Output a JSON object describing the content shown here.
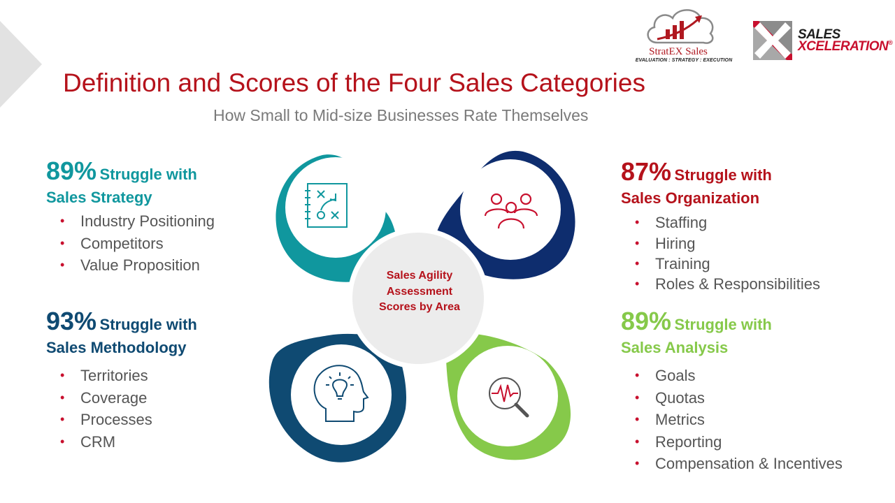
{
  "logos": {
    "stratex": {
      "name": "StratEX Sales",
      "tagline": "EVALUATION : STRATEGY : EXECUTION"
    },
    "sales_xceleration": {
      "line1": "SALES",
      "line2": "XCELERATION",
      "reg_mark": "®"
    }
  },
  "title": "Definition and Scores of the Four Sales Categories",
  "subtitle": "How Small to Mid-size Businesses Rate Themselves",
  "center_label": "Sales Agility Assessment Scores by Area",
  "colors": {
    "title": "#b5121b",
    "strategy": "#10979e",
    "methodology": "#0f4a72",
    "organization": "#b5121b",
    "organization_petal": "#0e2d6e",
    "analysis": "#86c94a",
    "bullet": "#c8102e",
    "center_circle": "#ececec"
  },
  "categories": {
    "strategy": {
      "percent": "89%",
      "struggle": "Struggle with",
      "name": "Sales Strategy",
      "icon": "strategy-plan-icon",
      "items": [
        "Industry Positioning",
        "Competitors",
        "Value Proposition"
      ]
    },
    "methodology": {
      "percent": "93%",
      "struggle": "Struggle with",
      "name": "Sales Methodology",
      "icon": "lightbulb-head-icon",
      "items": [
        "Territories",
        "Coverage",
        "Processes",
        "CRM"
      ]
    },
    "organization": {
      "percent": "87%",
      "struggle": "Struggle with",
      "name": "Sales Organization",
      "icon": "people-group-icon",
      "items": [
        "Staffing",
        "Hiring",
        "Training",
        "Roles & Responsibilities"
      ]
    },
    "analysis": {
      "percent": "89%",
      "struggle": "Struggle with",
      "name": "Sales Analysis",
      "icon": "analytics-magnifier-icon",
      "items": [
        "Goals",
        "Quotas",
        "Metrics",
        "Reporting",
        "Compensation & Incentives"
      ]
    }
  }
}
